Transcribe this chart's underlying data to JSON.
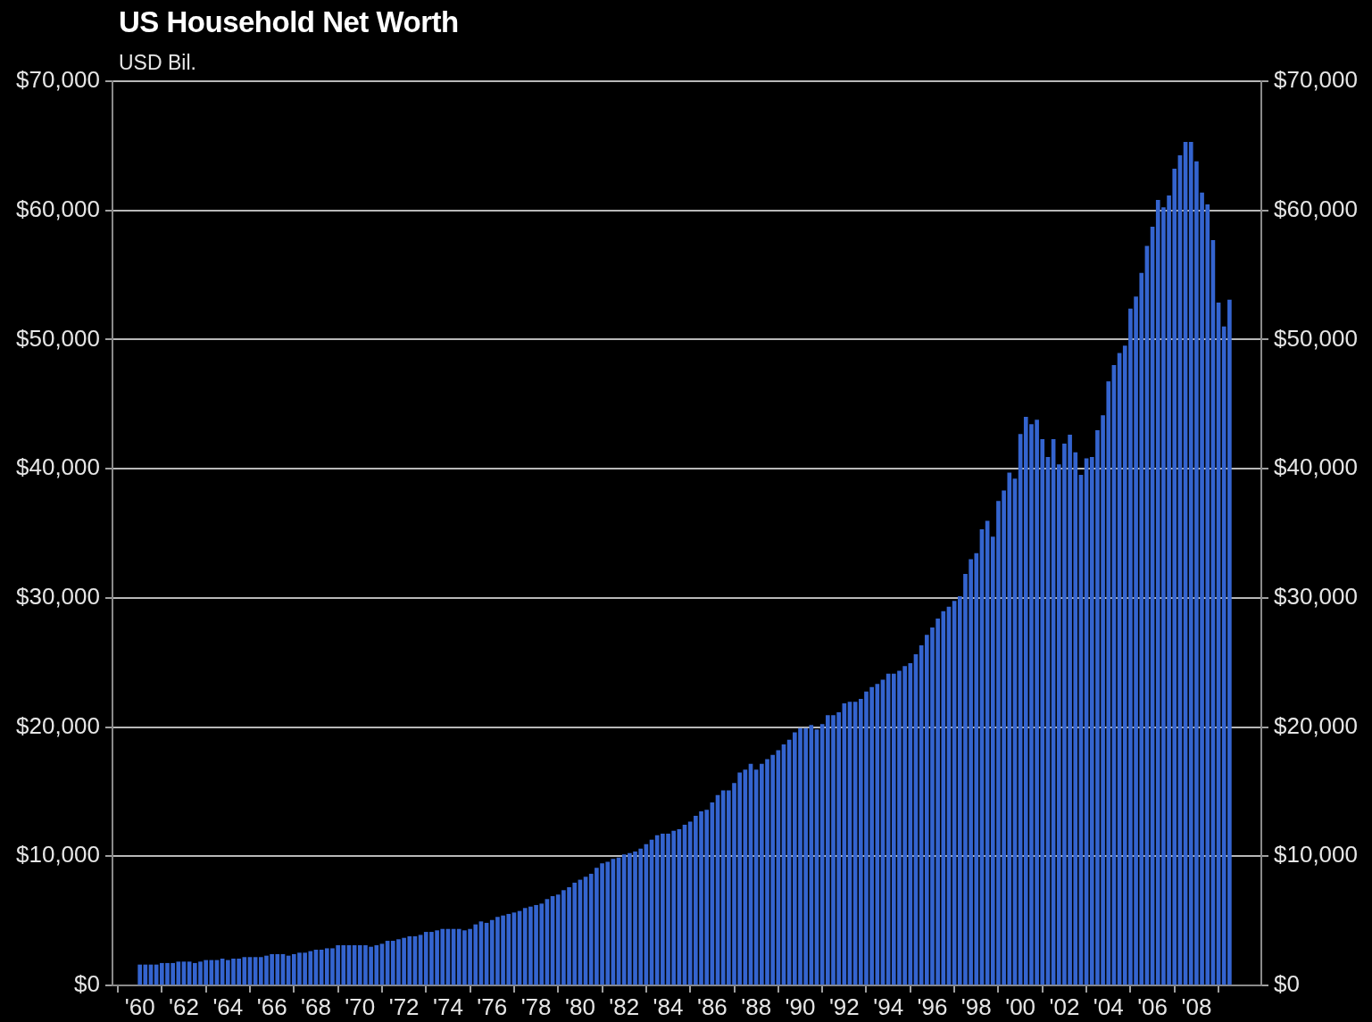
{
  "chart_data": {
    "type": "bar",
    "title": "US Household Net Worth",
    "subtitle": "USD Bil.",
    "color": "#3464cf",
    "grid": "y",
    "x": [
      1960,
      1960.25,
      1960.5,
      1960.75,
      1961,
      1961.25,
      1961.5,
      1961.75,
      1962,
      1962.25,
      1962.5,
      1962.75,
      1963,
      1963.25,
      1963.5,
      1963.75,
      1964,
      1964.25,
      1964.5,
      1964.75,
      1965,
      1965.25,
      1965.5,
      1965.75,
      1966,
      1966.25,
      1966.5,
      1966.75,
      1967,
      1967.25,
      1967.5,
      1967.75,
      1968,
      1968.25,
      1968.5,
      1968.75,
      1969,
      1969.25,
      1969.5,
      1969.75,
      1970,
      1970.25,
      1970.5,
      1970.75,
      1971,
      1971.25,
      1971.5,
      1971.75,
      1972,
      1972.25,
      1972.5,
      1972.75,
      1973,
      1973.25,
      1973.5,
      1973.75,
      1974,
      1974.25,
      1974.5,
      1974.75,
      1975,
      1975.25,
      1975.5,
      1975.75,
      1976,
      1976.25,
      1976.5,
      1976.75,
      1977,
      1977.25,
      1977.5,
      1977.75,
      1978,
      1978.25,
      1978.5,
      1978.75,
      1979,
      1979.25,
      1979.5,
      1979.75,
      1980,
      1980.25,
      1980.5,
      1980.75,
      1981,
      1981.25,
      1981.5,
      1981.75,
      1982,
      1982.25,
      1982.5,
      1982.75,
      1983,
      1983.25,
      1983.5,
      1983.75,
      1984,
      1984.25,
      1984.5,
      1984.75,
      1985,
      1985.25,
      1985.5,
      1985.75,
      1986,
      1986.25,
      1986.5,
      1986.75,
      1987,
      1987.25,
      1987.5,
      1987.75,
      1988,
      1988.25,
      1988.5,
      1988.75,
      1989,
      1989.25,
      1989.5,
      1989.75,
      1990,
      1990.25,
      1990.5,
      1990.75,
      1991,
      1991.25,
      1991.5,
      1991.75,
      1992,
      1992.25,
      1992.5,
      1992.75,
      1993,
      1993.25,
      1993.5,
      1993.75,
      1994,
      1994.25,
      1994.5,
      1994.75,
      1995,
      1995.25,
      1995.5,
      1995.75,
      1996,
      1996.25,
      1996.5,
      1996.75,
      1997,
      1997.25,
      1997.5,
      1997.75,
      1998,
      1998.25,
      1998.5,
      1998.75,
      1999,
      1999.25,
      1999.5,
      1999.75,
      2000,
      2000.25,
      2000.5,
      2000.75,
      2001,
      2001.25,
      2001.5,
      2001.75,
      2002,
      2002.25,
      2002.5,
      2002.75,
      2003,
      2003.25,
      2003.5,
      2003.75,
      2004,
      2004.25,
      2004.5,
      2004.75,
      2005,
      2005.25,
      2005.5,
      2005.75,
      2006,
      2006.25,
      2006.5,
      2006.75,
      2007,
      2007.25,
      2007.5,
      2007.75,
      2008,
      2008.25,
      2008.5,
      2008.75,
      2009,
      2009.25,
      2009.5
    ],
    "values": [
      1590,
      1590,
      1590,
      1590,
      1710,
      1710,
      1710,
      1820,
      1820,
      1820,
      1710,
      1820,
      1940,
      1940,
      1940,
      2050,
      1940,
      2050,
      2050,
      2170,
      2170,
      2170,
      2170,
      2280,
      2400,
      2400,
      2400,
      2280,
      2400,
      2510,
      2510,
      2630,
      2740,
      2740,
      2850,
      2850,
      3090,
      3090,
      3090,
      3090,
      3090,
      3090,
      2970,
      3090,
      3200,
      3430,
      3430,
      3550,
      3660,
      3780,
      3780,
      3890,
      4120,
      4120,
      4240,
      4350,
      4350,
      4350,
      4350,
      4240,
      4350,
      4700,
      4930,
      4820,
      5040,
      5280,
      5390,
      5510,
      5620,
      5740,
      5970,
      6080,
      6200,
      6310,
      6660,
      6890,
      7010,
      7350,
      7580,
      7930,
      8160,
      8390,
      8620,
      9080,
      9420,
      9540,
      9770,
      9880,
      10110,
      10230,
      10350,
      10570,
      10920,
      11260,
      11610,
      11720,
      11720,
      11950,
      12070,
      12420,
      12650,
      13110,
      13460,
      13570,
      14150,
      14720,
      15070,
      15070,
      15650,
      16450,
      16680,
      17140,
      16680,
      17140,
      17490,
      17830,
      18180,
      18640,
      18990,
      19560,
      19900,
      19900,
      20130,
      19790,
      20200,
      20890,
      20890,
      21120,
      21810,
      21930,
      21930,
      22160,
      22730,
      23080,
      23310,
      23650,
      24110,
      24110,
      24340,
      24690,
      24920,
      25610,
      26300,
      27110,
      27680,
      28370,
      28950,
      29290,
      29750,
      30100,
      31830,
      32980,
      33440,
      35290,
      35950,
      34710,
      37480,
      38290,
      39670,
      39210,
      42670,
      44000,
      43430,
      43770,
      42270,
      40890,
      42270,
      40310,
      41930,
      42620,
      41240,
      39510,
      40780,
      40890,
      42960,
      44110,
      46740,
      48000,
      48930,
      49500,
      52380,
      53300,
      55140,
      57220,
      58710,
      60790,
      60210,
      61140,
      63210,
      64240,
      65280,
      65280,
      63780,
      61360,
      60440,
      57680,
      52840,
      50990,
      53060
    ],
    "xlim": [
      1959.8,
      2009.9
    ],
    "xticks": [
      {
        "value": 1960,
        "label": "'60"
      },
      {
        "value": 1962,
        "label": "'62"
      },
      {
        "value": 1964,
        "label": "'64"
      },
      {
        "value": 1966,
        "label": "'66"
      },
      {
        "value": 1968,
        "label": "'68"
      },
      {
        "value": 1970,
        "label": "'70"
      },
      {
        "value": 1972,
        "label": "'72"
      },
      {
        "value": 1974,
        "label": "'74"
      },
      {
        "value": 1976,
        "label": "'76"
      },
      {
        "value": 1978,
        "label": "'78"
      },
      {
        "value": 1980,
        "label": "'80"
      },
      {
        "value": 1982,
        "label": "'82"
      },
      {
        "value": 1984,
        "label": "'84"
      },
      {
        "value": 1986,
        "label": "'86"
      },
      {
        "value": 1988,
        "label": "'88"
      },
      {
        "value": 1990,
        "label": "'90"
      },
      {
        "value": 1992,
        "label": "'92"
      },
      {
        "value": 1994,
        "label": "'94"
      },
      {
        "value": 1996,
        "label": "'96"
      },
      {
        "value": 1998,
        "label": "'98"
      },
      {
        "value": 2000,
        "label": "'00"
      },
      {
        "value": 2002,
        "label": "'02"
      },
      {
        "value": 2004,
        "label": "'04"
      },
      {
        "value": 2006,
        "label": "'06"
      },
      {
        "value": 2008,
        "label": "'08"
      }
    ],
    "ylim": [
      0,
      70000
    ],
    "yticks": [
      {
        "value": 0,
        "label": "$0"
      },
      {
        "value": 10000,
        "label": "$10,000"
      },
      {
        "value": 20000,
        "label": "$20,000"
      },
      {
        "value": 30000,
        "label": "$30,000"
      },
      {
        "value": 40000,
        "label": "$40,000"
      },
      {
        "value": 50000,
        "label": "$50,000"
      },
      {
        "value": 60000,
        "label": "$60,000"
      },
      {
        "value": 70000,
        "label": "$70,000"
      }
    ],
    "y2lim": [
      0,
      70000
    ],
    "y2ticks": [
      {
        "value": 0,
        "label": "$0"
      },
      {
        "value": 10000,
        "label": "$10,000"
      },
      {
        "value": 20000,
        "label": "$20,000"
      },
      {
        "value": 30000,
        "label": "$30,000"
      },
      {
        "value": 40000,
        "label": "$40,000"
      },
      {
        "value": 50000,
        "label": "$50,000"
      },
      {
        "value": 60000,
        "label": "$60,000"
      },
      {
        "value": 70000,
        "label": "$70,000"
      }
    ]
  }
}
